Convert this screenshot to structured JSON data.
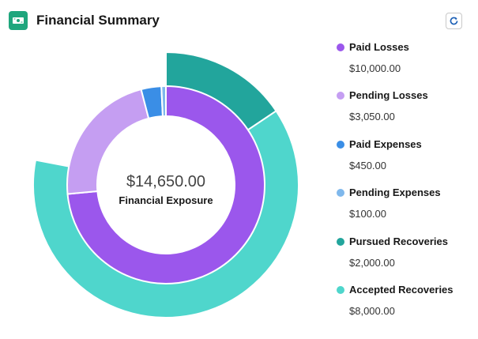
{
  "header": {
    "title": "Financial Summary",
    "icon": "money-icon",
    "refresh_icon": "refresh-icon"
  },
  "center": {
    "value": "$14,650.00",
    "label": "Financial Exposure"
  },
  "legend": [
    {
      "label": "Paid Losses",
      "value": "$10,000.00",
      "color": "#9b57ec"
    },
    {
      "label": "Pending Losses",
      "value": "$3,050.00",
      "color": "#c59ef2"
    },
    {
      "label": "Paid Expenses",
      "value": "$450.00",
      "color": "#3a8ee6"
    },
    {
      "label": "Pending Expenses",
      "value": "$100.00",
      "color": "#7fb8ec"
    },
    {
      "label": "Pursued Recoveries",
      "value": "$2,000.00",
      "color": "#22a59c"
    },
    {
      "label": "Accepted Recoveries",
      "value": "$8,000.00",
      "color": "#4fd6cc"
    }
  ],
  "chart_data": {
    "type": "pie",
    "categories": [
      "Paid Losses",
      "Pending Losses",
      "Paid Expenses",
      "Pending Expenses",
      "Pursued Recoveries",
      "Accepted Recoveries"
    ],
    "inner_ring": {
      "categories": [
        "Paid Losses",
        "Pending Losses",
        "Paid Expenses",
        "Pending Expenses"
      ],
      "values": [
        10000,
        3050,
        450,
        100
      ],
      "colors": [
        "#9b57ec",
        "#c59ef2",
        "#3a8ee6",
        "#7fb8ec"
      ]
    },
    "outer_ring": {
      "categories": [
        "Pursued Recoveries",
        "Accepted Recoveries"
      ],
      "values": [
        2000,
        8000
      ],
      "colors": [
        "#22a59c",
        "#4fd6cc"
      ]
    },
    "center_value": "$14,650.00",
    "center_label": "Financial Exposure",
    "legend_position": "right"
  }
}
